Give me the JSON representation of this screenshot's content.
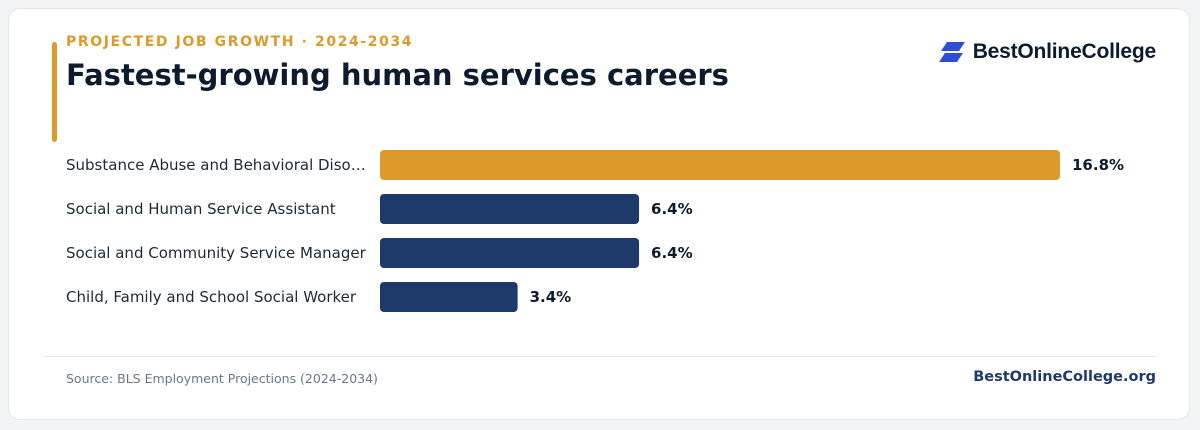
{
  "header": {
    "kicker": "PROJECTED JOB GROWTH · 2024-2034",
    "title": "Fastest-growing human services careers"
  },
  "brand": {
    "logo_text": "BestOnlineCollege",
    "logo_icon": "stacked-parallelogram-icon",
    "logo_color": "#2a4fd6"
  },
  "footer": {
    "source": "Source: BLS Employment Projections (2024-2034)",
    "site": "BestOnlineCollege.org"
  },
  "colors": {
    "highlight": "#dc9a2b",
    "bar": "#1d3a6b"
  },
  "chart_data": {
    "type": "bar",
    "orientation": "horizontal",
    "categories": [
      "Substance Abuse and Behavioral Diso…",
      "Social and Human Service Assistant",
      "Social and Community Service Manager",
      "Child, Family and School Social Worker"
    ],
    "values": [
      16.8,
      6.4,
      6.4,
      3.4
    ],
    "value_labels": [
      "16.8%",
      "6.4%",
      "6.4%",
      "3.4%"
    ],
    "highlight_index": 0,
    "xlim": [
      0,
      16.8
    ],
    "grid": false,
    "legend": "none"
  }
}
